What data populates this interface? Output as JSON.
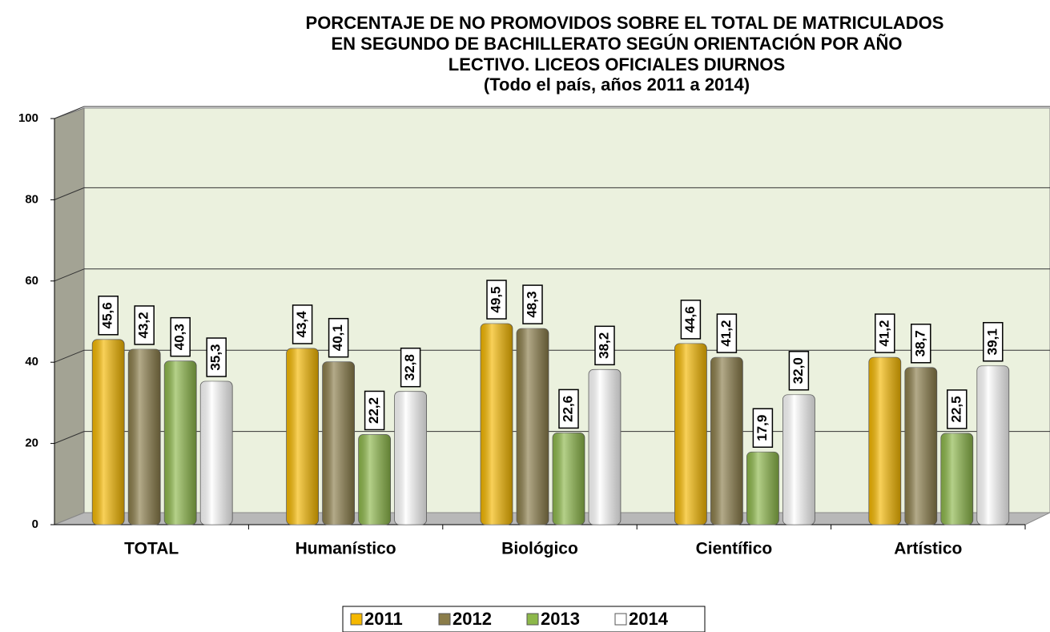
{
  "chart_data": {
    "type": "bar",
    "title": [
      "PORCENTAJE DE NO PROMOVIDOS SOBRE EL TOTAL DE MATRICULADOS",
      "EN SEGUNDO DE BACHILLERATO SEGÚN ORIENTACIÓN POR AÑO",
      "LECTIVO. LICEOS OFICIALES DIURNOS"
    ],
    "subtitle": "(Todo el país, años 2011 a 2014)",
    "categories": [
      "TOTAL",
      "Humanístico",
      "Biológico",
      "Científico",
      "Artístico"
    ],
    "series": [
      {
        "name": "2011",
        "color": "#f5b800",
        "values": [
          45.6,
          43.4,
          49.5,
          44.6,
          41.2
        ],
        "value_labels": [
          "45,6",
          "43,4",
          "49,5",
          "44,6",
          "41,2"
        ]
      },
      {
        "name": "2012",
        "color": "#8b7d4a",
        "values": [
          43.2,
          40.1,
          48.3,
          41.2,
          38.7
        ],
        "value_labels": [
          "43,2",
          "40,1",
          "48,3",
          "41,2",
          "38,7"
        ]
      },
      {
        "name": "2013",
        "color": "#8db84a",
        "values": [
          40.3,
          22.2,
          22.6,
          17.9,
          22.5
        ],
        "value_labels": [
          "40,3",
          "22,2",
          "22,6",
          "17,9",
          "22,5"
        ]
      },
      {
        "name": "2014",
        "color": "#ffffff",
        "values": [
          35.3,
          32.8,
          38.2,
          32.0,
          39.1
        ],
        "value_labels": [
          "35,3",
          "32,8",
          "38,2",
          "32,0",
          "39,1"
        ]
      }
    ],
    "ylim": [
      0,
      100
    ],
    "yticks": [
      0,
      20,
      40,
      60,
      80,
      100
    ],
    "grid": true,
    "legend": "bottom"
  }
}
